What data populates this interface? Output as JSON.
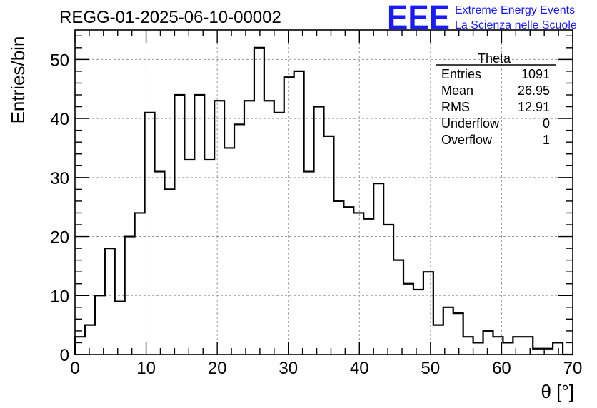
{
  "run_title": "REGG-01-2025-06-10-00002",
  "logo": {
    "mark": "EEE",
    "line1": "Extreme Energy Events",
    "line2": "La Scienza nelle Scuole",
    "color": "#1a1aff"
  },
  "stats_box": {
    "name": "Theta",
    "rows": [
      {
        "label": "Entries",
        "value": "1091"
      },
      {
        "label": "Mean",
        "value": "26.95"
      },
      {
        "label": "RMS",
        "value": "12.91"
      },
      {
        "label": "Underflow",
        "value": "0"
      },
      {
        "label": "Overflow",
        "value": "1"
      }
    ]
  },
  "chart_data": {
    "type": "bar",
    "title": "REGG-01-2025-06-10-00002",
    "xlabel": "θ [°]",
    "ylabel": "Entries/bin",
    "xlim": [
      0,
      70
    ],
    "ylim": [
      0,
      55
    ],
    "grid": true,
    "bin_width": 1.4,
    "x_ticks": [
      0,
      10,
      20,
      30,
      40,
      50,
      60,
      70
    ],
    "y_ticks": [
      0,
      10,
      20,
      30,
      40,
      50
    ],
    "values": [
      3,
      5,
      10,
      18,
      9,
      20,
      24,
      41,
      31,
      28,
      44,
      33,
      44,
      33,
      43,
      35,
      39,
      43,
      52,
      43,
      41,
      47,
      48,
      31,
      42,
      37,
      26,
      25,
      24,
      23,
      29,
      22,
      16,
      12,
      11,
      14,
      5,
      8,
      7,
      3,
      2,
      4,
      3,
      2,
      3,
      3,
      1,
      1,
      2,
      0
    ]
  }
}
